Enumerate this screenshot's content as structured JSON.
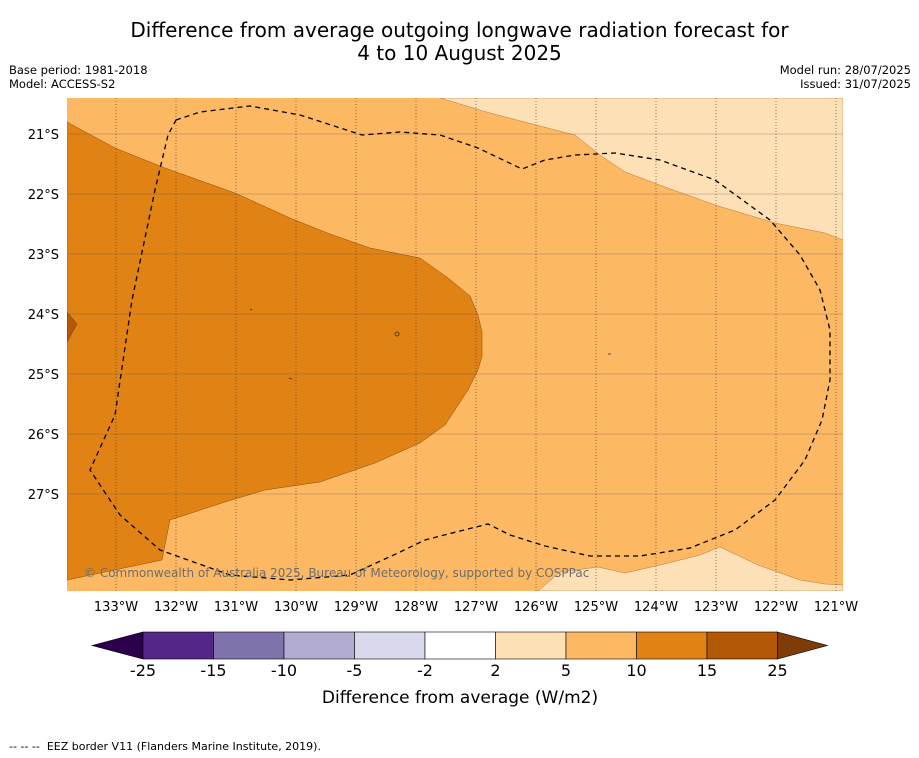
{
  "title_line1": "Difference from average outgoing longwave radiation forecast for",
  "title_line2": "4 to 10 August 2025",
  "base_period": "Base period: 1981-2018",
  "model": "Model: ACCESS-S2",
  "model_run": "Model run: 28/07/2025",
  "issued": "Issued: 31/07/2025",
  "copyright": "© Commonwealth of Australia 2025, Bureau of Meteorology, supported by COSPPac",
  "lat_labels": [
    "21°S",
    "22°S",
    "23°S",
    "24°S",
    "25°S",
    "26°S",
    "27°S"
  ],
  "lon_labels": [
    "133°W",
    "132°W",
    "131°W",
    "130°W",
    "129°W",
    "128°W",
    "127°W",
    "126°W",
    "125°W",
    "124°W",
    "123°W",
    "122°W",
    "121°W"
  ],
  "colorbar": {
    "label": "Difference from average (W/m2)",
    "ticks": [
      "-25",
      "-15",
      "-10",
      "-5",
      "-2",
      "2",
      "5",
      "10",
      "15",
      "25"
    ],
    "colors": {
      "lt_-25": "#2d004b",
      "-25_-15": "#542788",
      "-15_-10": "#8073ac",
      "-10_-5": "#b2abd2",
      "-5_-2": "#d8daeb",
      "-2_2": "#ffffff",
      "2_5": "#fee0b6",
      "5_10": "#fdb863",
      "10_15": "#e08214",
      "15_25": "#b35806",
      "gt_25": "#7f3b08"
    }
  },
  "legend_eez": "EEZ border V11 (Flanders Marine Institute, 2019).",
  "legend_eez_marker": "-- -- --"
}
